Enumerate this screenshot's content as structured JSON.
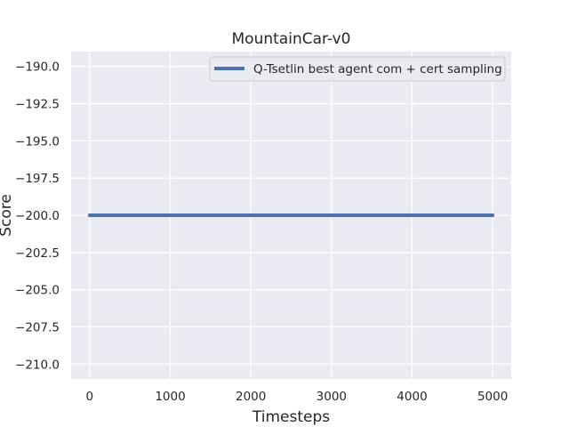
{
  "chart_data": {
    "type": "line",
    "title": "MountainCar-v0",
    "xlabel": "Timesteps",
    "ylabel": "Score",
    "xlim": [
      -230,
      5230
    ],
    "ylim": [
      -211.0,
      -189.0
    ],
    "xticks": [
      0,
      1000,
      2000,
      3000,
      4000,
      5000
    ],
    "xtick_labels": [
      "0",
      "1000",
      "2000",
      "3000",
      "4000",
      "5000"
    ],
    "yticks": [
      -190.0,
      -192.5,
      -195.0,
      -197.5,
      -200.0,
      -202.5,
      -205.0,
      -207.5,
      -210.0
    ],
    "ytick_labels": [
      "−190.0",
      "−192.5",
      "−195.0",
      "−197.5",
      "−200.0",
      "−202.5",
      "−205.0",
      "−207.5",
      "−210.0"
    ],
    "grid": true,
    "legend_position": "top-right",
    "series": [
      {
        "name": "Q-Tsetlin best agent com + cert sampling",
        "color": "#4c72b0",
        "x": [
          0,
          1000,
          2000,
          3000,
          4000,
          5000
        ],
        "y": [
          -200,
          -200,
          -200,
          -200,
          -200,
          -200
        ]
      }
    ]
  },
  "colors": {
    "plot_background": "#eaeaf2",
    "grid": "#ffffff",
    "text": "#262626"
  }
}
